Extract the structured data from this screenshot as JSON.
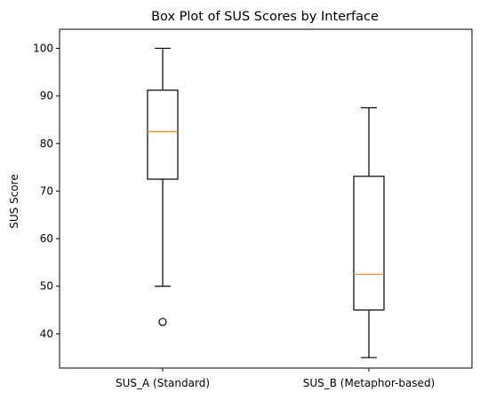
{
  "chart_data": {
    "type": "box",
    "title": "Box Plot of SUS Scores by Interface",
    "xlabel": "",
    "ylabel": "SUS Score",
    "ylim": [
      32.8,
      104.0
    ],
    "yticks": [
      40,
      50,
      60,
      70,
      80,
      90,
      100
    ],
    "categories": [
      "SUS_A (Standard)",
      "SUS_B (Metaphor-based)"
    ],
    "boxes": [
      {
        "whisker_low": 50.0,
        "q1": 72.5,
        "median": 82.5,
        "q3": 91.2,
        "whisker_high": 100.0,
        "outliers": [
          42.5
        ]
      },
      {
        "whisker_low": 35.0,
        "q1": 45.0,
        "median": 52.5,
        "q3": 73.1,
        "whisker_high": 87.5,
        "outliers": []
      }
    ],
    "grid": false,
    "colors": {
      "box": "#000000",
      "median": "#ff7f0e",
      "background": "#ffffff"
    }
  }
}
